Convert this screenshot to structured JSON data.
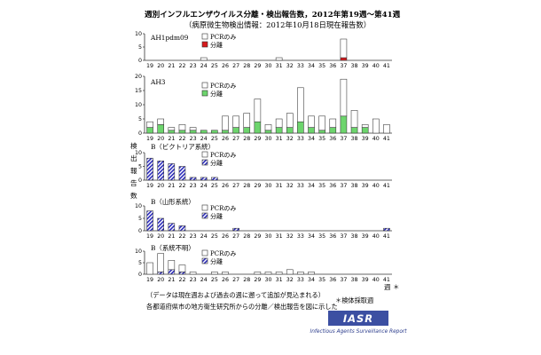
{
  "colors": {
    "pcr_only": "#ffffff",
    "isolated_ah1": "#d7191c",
    "isolated_ah3": "#6dd56d",
    "isolated_b": "#2b2bbb",
    "axis": "#333333",
    "logo_fill": "#3c4fa2",
    "logo_text": "#ffffff",
    "logo_sub": "#2b3c8c"
  },
  "header": {
    "title": "週別インフルエンザウイルス分離・検出報告数，2012年第19週〜第41週",
    "subtitle": "（病原微生物検出情報：2012年10月18日現在報告数）"
  },
  "y_axis_label": [
    "検",
    "出",
    "報",
    "告",
    "数"
  ],
  "x_unit": "週",
  "legend_common": {
    "pcr_label": "PCRのみ",
    "isolated_label": "分離"
  },
  "footer": {
    "collection_week_note": "＊検体採取週",
    "note1": "（データは現在週および過去の週に遡って追加が見込まれる）",
    "note2": "各都道府県市の地方衛生研究所からの分離／検出報告を図に示した",
    "asterisk": "＊"
  },
  "logo": {
    "title": "IASR",
    "subtitle": "Infectious Agents Surveillance Report"
  },
  "chart_data": [
    {
      "type": "bar",
      "stacked": true,
      "label": "AH1pdm09",
      "x": [
        19,
        20,
        21,
        22,
        23,
        24,
        25,
        26,
        27,
        28,
        29,
        30,
        31,
        32,
        33,
        34,
        35,
        36,
        37,
        38,
        39,
        40,
        41
      ],
      "ylim": [
        0,
        10
      ],
      "yticks": [
        0,
        5,
        10
      ],
      "series": [
        {
          "name": "分離",
          "pattern": "solid",
          "color_key": "isolated_ah1",
          "values": [
            0,
            0,
            0,
            0,
            0,
            0,
            0,
            0,
            0,
            0,
            0,
            0,
            0,
            0,
            0,
            0,
            0,
            0,
            1,
            0,
            0,
            0,
            0
          ]
        },
        {
          "name": "PCRのみ",
          "pattern": "none",
          "color_key": "pcr_only",
          "values": [
            0,
            0,
            0,
            0,
            0,
            1,
            0,
            0,
            0,
            0,
            0,
            0,
            1,
            0,
            0,
            0,
            0,
            0,
            7,
            0,
            0,
            0,
            0
          ]
        }
      ]
    },
    {
      "type": "bar",
      "stacked": true,
      "label": "AH3",
      "x": [
        19,
        20,
        21,
        22,
        23,
        24,
        25,
        26,
        27,
        28,
        29,
        30,
        31,
        32,
        33,
        34,
        35,
        36,
        37,
        38,
        39,
        40,
        41
      ],
      "ylim": [
        0,
        20
      ],
      "yticks": [
        0,
        5,
        10,
        15,
        20
      ],
      "series": [
        {
          "name": "分離",
          "pattern": "solid",
          "color_key": "isolated_ah3",
          "values": [
            2,
            3,
            1,
            1,
            1,
            1,
            1,
            1,
            2,
            2,
            4,
            1,
            2,
            2,
            4,
            2,
            1,
            2,
            6,
            2,
            2,
            0,
            0
          ]
        },
        {
          "name": "PCRのみ",
          "pattern": "none",
          "color_key": "pcr_only",
          "values": [
            2,
            2,
            1,
            2,
            1,
            0,
            0,
            5,
            4,
            5,
            8,
            2,
            3,
            5,
            12,
            4,
            5,
            3,
            13,
            6,
            1,
            5,
            3
          ]
        }
      ]
    },
    {
      "type": "bar",
      "stacked": true,
      "label": "B（ビクトリア系統）",
      "x": [
        19,
        20,
        21,
        22,
        23,
        24,
        25,
        26,
        27,
        28,
        29,
        30,
        31,
        32,
        33,
        34,
        35,
        36,
        37,
        38,
        39,
        40,
        41
      ],
      "ylim": [
        0,
        10
      ],
      "yticks": [
        0,
        5,
        10
      ],
      "series": [
        {
          "name": "分離",
          "pattern": "hatch",
          "color_key": "isolated_b",
          "values": [
            8,
            7,
            6,
            5,
            1,
            1,
            1,
            0,
            0,
            0,
            0,
            0,
            0,
            0,
            0,
            0,
            0,
            0,
            0,
            0,
            0,
            0,
            0
          ]
        },
        {
          "name": "PCRのみ",
          "pattern": "none",
          "color_key": "pcr_only",
          "values": [
            0,
            0,
            0,
            0,
            0,
            0,
            0,
            0,
            0,
            0,
            0,
            0,
            0,
            0,
            0,
            0,
            0,
            0,
            0,
            0,
            0,
            0,
            0
          ]
        }
      ]
    },
    {
      "type": "bar",
      "stacked": true,
      "label": "B（山形系統）",
      "x": [
        19,
        20,
        21,
        22,
        23,
        24,
        25,
        26,
        27,
        28,
        29,
        30,
        31,
        32,
        33,
        34,
        35,
        36,
        37,
        38,
        39,
        40,
        41
      ],
      "ylim": [
        0,
        10
      ],
      "yticks": [
        0,
        5,
        10
      ],
      "series": [
        {
          "name": "分離",
          "pattern": "hatch",
          "color_key": "isolated_b",
          "values": [
            8,
            5,
            3,
            2,
            0,
            0,
            0,
            0,
            1,
            0,
            0,
            0,
            0,
            0,
            0,
            0,
            0,
            0,
            0,
            0,
            0,
            0,
            1
          ]
        },
        {
          "name": "PCRのみ",
          "pattern": "none",
          "color_key": "pcr_only",
          "values": [
            0,
            0,
            0,
            0,
            0,
            0,
            0,
            0,
            0,
            0,
            0,
            0,
            0,
            0,
            0,
            0,
            0,
            0,
            0,
            0,
            0,
            0,
            0
          ]
        }
      ]
    },
    {
      "type": "bar",
      "stacked": true,
      "label": "B（系統不明）",
      "x": [
        19,
        20,
        21,
        22,
        23,
        24,
        25,
        26,
        27,
        28,
        29,
        30,
        31,
        32,
        33,
        34,
        35,
        36,
        37,
        38,
        39,
        40,
        41
      ],
      "ylim": [
        0,
        10
      ],
      "yticks": [
        0,
        5,
        10
      ],
      "series": [
        {
          "name": "分離",
          "pattern": "hatch",
          "color_key": "isolated_b",
          "values": [
            0,
            1,
            2,
            1,
            0,
            0,
            0,
            0,
            0,
            0,
            0,
            0,
            0,
            0,
            0,
            0,
            0,
            0,
            0,
            0,
            0,
            0,
            0
          ]
        },
        {
          "name": "PCRのみ",
          "pattern": "none",
          "color_key": "pcr_only",
          "values": [
            5,
            8,
            4,
            3,
            1,
            0,
            1,
            1,
            0,
            0,
            1,
            1,
            1,
            2,
            1,
            1,
            0,
            0,
            0,
            0,
            0,
            0,
            0
          ]
        }
      ]
    }
  ]
}
